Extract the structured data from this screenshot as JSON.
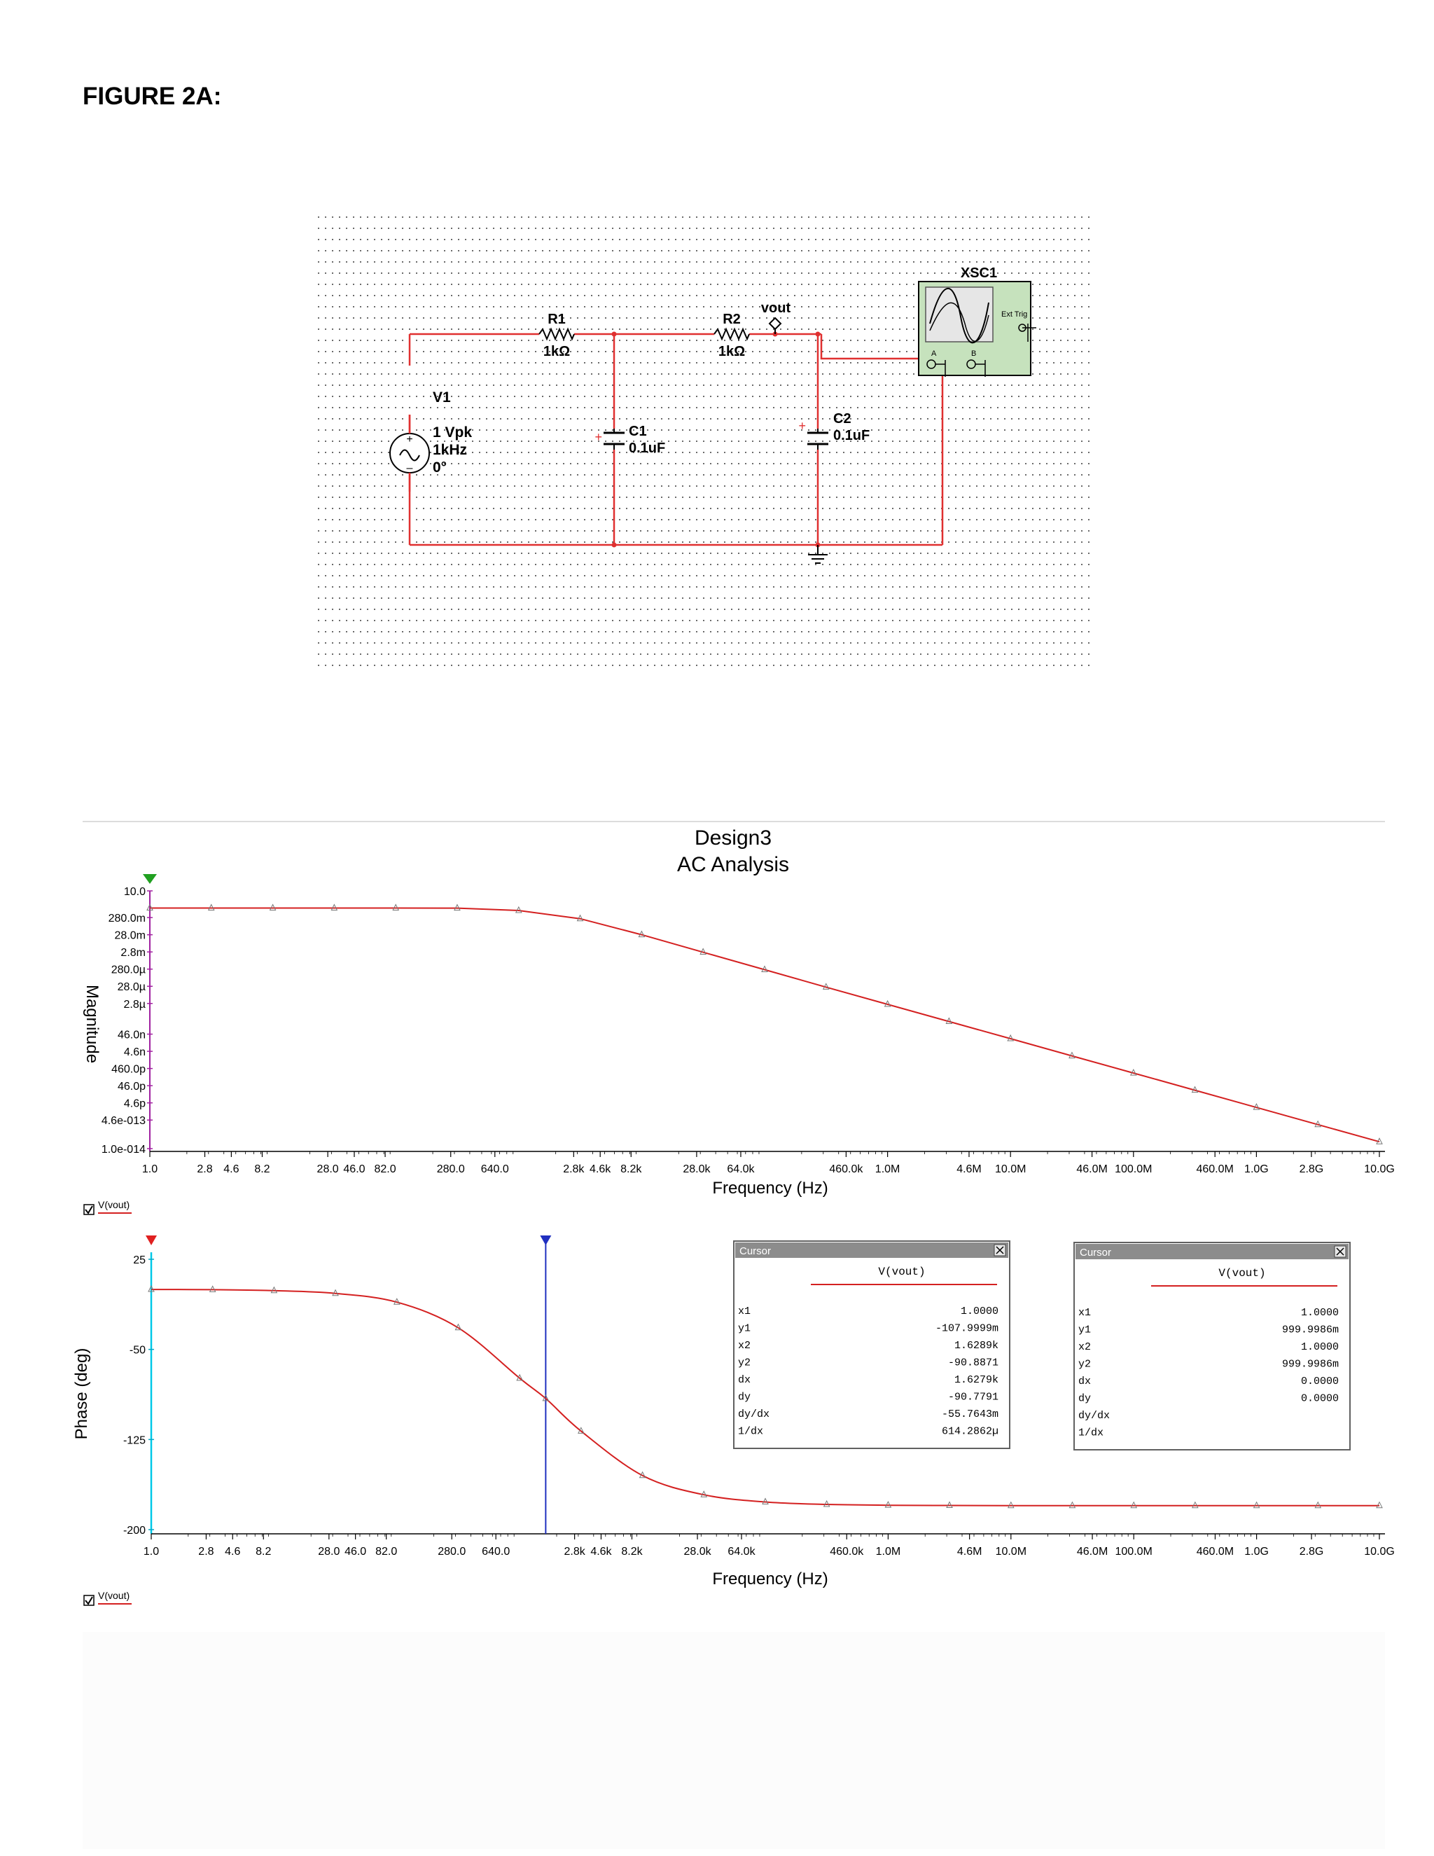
{
  "heading": "FIGURE 2A:",
  "schematic": {
    "components": {
      "r1": {
        "name": "R1",
        "value": "1kΩ"
      },
      "r2": {
        "name": "R2",
        "value": "1kΩ"
      },
      "c1": {
        "name": "C1",
        "value": "0.1uF"
      },
      "c2": {
        "name": "C2",
        "value": "0.1uF"
      },
      "v1": {
        "name": "V1",
        "amplitude": "1 Vpk",
        "frequency": "1kHz",
        "phase": "0°"
      },
      "xsc1": {
        "name": "XSC1",
        "ext_trig": "Ext Trig",
        "ch_a": "A",
        "ch_b": "B"
      },
      "net": "vout"
    },
    "wire_color": "#e03030"
  },
  "analysis": {
    "title": "Design3",
    "subtitle": "AC Analysis",
    "legend_label": "V(vout)",
    "trace_color": "#d42020"
  },
  "cursors": [
    {
      "title": "Cursor",
      "column": "V(vout)",
      "rows": [
        {
          "k": "x1",
          "v": "1.0000"
        },
        {
          "k": "y1",
          "v": "-107.9999m"
        },
        {
          "k": "x2",
          "v": "1.6289k"
        },
        {
          "k": "y2",
          "v": "-90.8871"
        },
        {
          "k": "dx",
          "v": "1.6279k"
        },
        {
          "k": "dy",
          "v": "-90.7791"
        },
        {
          "k": "dy/dx",
          "v": "-55.7643m"
        },
        {
          "k": "1/dx",
          "v": "614.2862µ"
        }
      ]
    },
    {
      "title": "Cursor",
      "column": "V(vout)",
      "rows": [
        {
          "k": "x1",
          "v": "1.0000"
        },
        {
          "k": "y1",
          "v": "999.9986m"
        },
        {
          "k": "x2",
          "v": "1.0000"
        },
        {
          "k": "y2",
          "v": "999.9986m"
        },
        {
          "k": "dx",
          "v": "0.0000"
        },
        {
          "k": "dy",
          "v": "0.0000"
        },
        {
          "k": "dy/dx",
          "v": ""
        },
        {
          "k": "1/dx",
          "v": ""
        }
      ]
    }
  ],
  "chart_data": [
    {
      "type": "line",
      "xlabel": "Frequency (Hz)",
      "ylabel": "Magnitude",
      "x_scale": "log",
      "y_scale": "log",
      "xlim": [
        1,
        10000000000
      ],
      "ylim": [
        1e-14,
        10
      ],
      "x_ticks": [
        {
          "v": 1,
          "label": "1.0"
        },
        {
          "v": 2.8,
          "label": "2.8"
        },
        {
          "v": 4.6,
          "label": "4.6"
        },
        {
          "v": 8.2,
          "label": "8.2"
        },
        {
          "v": 28,
          "label": "28.0"
        },
        {
          "v": 46,
          "label": "46.0"
        },
        {
          "v": 82,
          "label": "82.0"
        },
        {
          "v": 280,
          "label": "280.0"
        },
        {
          "v": 640,
          "label": "640.0"
        },
        {
          "v": 2800,
          "label": "2.8k"
        },
        {
          "v": 4600,
          "label": "4.6k"
        },
        {
          "v": 8200,
          "label": "8.2k"
        },
        {
          "v": 28000,
          "label": "28.0k"
        },
        {
          "v": 64000,
          "label": "64.0k"
        },
        {
          "v": 460000,
          "label": "460.0k"
        },
        {
          "v": 1000000,
          "label": "1.0M"
        },
        {
          "v": 4600000,
          "label": "4.6M"
        },
        {
          "v": 10000000,
          "label": "10.0M"
        },
        {
          "v": 46000000,
          "label": "46.0M"
        },
        {
          "v": 100000000,
          "label": "100.0M"
        },
        {
          "v": 460000000,
          "label": "460.0M"
        },
        {
          "v": 1000000000,
          "label": "1.0G"
        },
        {
          "v": 2800000000,
          "label": "2.8G"
        },
        {
          "v": 10000000000,
          "label": "10.0G"
        }
      ],
      "y_ticks": [
        {
          "v": 10,
          "label": "10.0"
        },
        {
          "v": 0.28,
          "label": "280.0m"
        },
        {
          "v": 0.028,
          "label": "28.0m"
        },
        {
          "v": 0.0028,
          "label": "2.8m"
        },
        {
          "v": 0.00028,
          "label": "280.0µ"
        },
        {
          "v": 2.8e-05,
          "label": "28.0µ"
        },
        {
          "v": 2.8e-06,
          "label": "2.8µ"
        },
        {
          "v": 4.6e-08,
          "label": "46.0n"
        },
        {
          "v": 4.6e-09,
          "label": "4.6n"
        },
        {
          "v": 4.6e-10,
          "label": "460.0p"
        },
        {
          "v": 4.6e-11,
          "label": "46.0p"
        },
        {
          "v": 4.6e-12,
          "label": "4.6p"
        },
        {
          "v": 4.6e-13,
          "label": "4.6e-013"
        },
        {
          "v": 1e-14,
          "label": "1.0e-014"
        }
      ],
      "series": [
        {
          "x": [
            1,
            3.16,
            10,
            31.6,
            100,
            316,
            1000,
            3160,
            10000,
            31600,
            100000,
            316000,
            1000000,
            3160000,
            10000000,
            31600000,
            100000000,
            316000000,
            1000000000,
            3160000000,
            10000000000
          ],
          "values": [
            1,
            1,
            1,
            1,
            0.9999,
            0.99,
            0.72,
            0.24,
            0.028,
            0.0027,
            0.00026,
            2.5e-05,
            2.5e-06,
            2.5e-07,
            2.5e-08,
            2.5e-09,
            2.5e-10,
            2.5e-11,
            2.5e-12,
            2.5e-13,
            2.5e-14
          ]
        }
      ]
    },
    {
      "type": "line",
      "xlabel": "Frequency (Hz)",
      "ylabel": "Phase (deg)",
      "x_scale": "log",
      "xlim": [
        1,
        10000000000
      ],
      "ylim": [
        -200,
        25
      ],
      "y_ticks": [
        {
          "v": 25,
          "label": "25"
        },
        {
          "v": -50,
          "label": "-50"
        },
        {
          "v": -125,
          "label": "-125"
        },
        {
          "v": -200,
          "label": "-200"
        }
      ],
      "cursor_x": [
        1,
        1628.9
      ],
      "series": [
        {
          "x": [
            1,
            3.16,
            10,
            31.6,
            100,
            316,
            1000,
            1628.9,
            3160,
            10000,
            31600,
            100000,
            316000,
            1000000,
            3160000,
            10000000,
            31600000,
            100000000,
            316000000,
            1000000000,
            3160000000,
            10000000000
          ],
          "values": [
            -0.1,
            -0.3,
            -1.1,
            -3.4,
            -10.7,
            -32,
            -74,
            -90.9,
            -118,
            -155,
            -171,
            -177,
            -179,
            -179.7,
            -179.9,
            -180,
            -180,
            -180,
            -180,
            -180,
            -180,
            -180
          ]
        }
      ]
    }
  ]
}
